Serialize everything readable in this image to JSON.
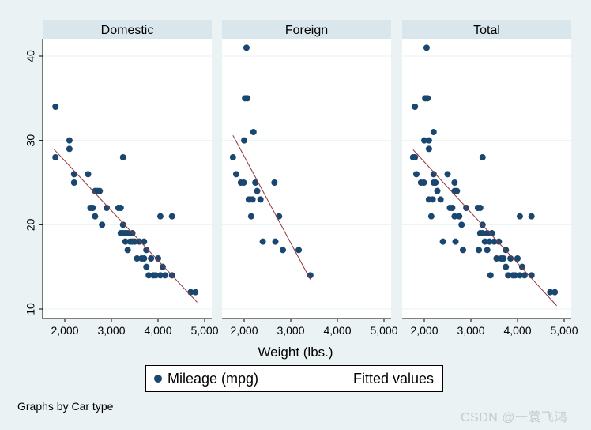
{
  "chart_data": {
    "type": "scatter",
    "subtype": "faceted scatter with linear fit",
    "xlabel": "Weight (lbs.)",
    "ylabel": "",
    "xlim": [
      1700,
      5000
    ],
    "ylim": [
      10,
      42
    ],
    "xticks": [
      2000,
      3000,
      4000,
      5000
    ],
    "xtick_labels": [
      "2,000",
      "3,000",
      "4,000",
      "5,000"
    ],
    "yticks": [
      10,
      20,
      30,
      40
    ],
    "ytick_labels": [
      "10",
      "20",
      "30",
      "40"
    ],
    "series_colors": {
      "points": "#1a476f",
      "fit": "#90353b"
    },
    "panels": [
      {
        "title": "Domestic",
        "points": [
          [
            1800,
            34
          ],
          [
            1800,
            28
          ],
          [
            2100,
            30
          ],
          [
            2100,
            29
          ],
          [
            2200,
            26
          ],
          [
            2200,
            25
          ],
          [
            2500,
            26
          ],
          [
            2550,
            22
          ],
          [
            2600,
            22
          ],
          [
            2650,
            21
          ],
          [
            2650,
            24
          ],
          [
            2700,
            24
          ],
          [
            2750,
            24
          ],
          [
            2800,
            20
          ],
          [
            2900,
            22
          ],
          [
            3150,
            22
          ],
          [
            3200,
            22
          ],
          [
            3200,
            19
          ],
          [
            3250,
            28
          ],
          [
            3250,
            20
          ],
          [
            3250,
            19
          ],
          [
            3300,
            19
          ],
          [
            3300,
            18
          ],
          [
            3350,
            17
          ],
          [
            3350,
            19
          ],
          [
            3400,
            18
          ],
          [
            3450,
            19
          ],
          [
            3450,
            18
          ],
          [
            3500,
            18
          ],
          [
            3550,
            16
          ],
          [
            3600,
            18
          ],
          [
            3650,
            16
          ],
          [
            3700,
            18
          ],
          [
            3700,
            16
          ],
          [
            3750,
            17
          ],
          [
            3750,
            15
          ],
          [
            3800,
            14
          ],
          [
            3850,
            16
          ],
          [
            3900,
            14
          ],
          [
            3950,
            14
          ],
          [
            4000,
            16
          ],
          [
            4050,
            21
          ],
          [
            4050,
            14
          ],
          [
            4100,
            15
          ],
          [
            4150,
            14
          ],
          [
            4300,
            21
          ],
          [
            4300,
            14
          ],
          [
            4700,
            12
          ],
          [
            4800,
            12
          ]
        ],
        "fit": {
          "x": [
            1760,
            4840
          ],
          "y": [
            29.0,
            10.8
          ]
        }
      },
      {
        "title": "Foreign",
        "points": [
          [
            1760,
            28
          ],
          [
            1830,
            26
          ],
          [
            1930,
            25
          ],
          [
            1990,
            25
          ],
          [
            2000,
            30
          ],
          [
            2020,
            35
          ],
          [
            2050,
            41
          ],
          [
            2070,
            35
          ],
          [
            2100,
            23
          ],
          [
            2130,
            23
          ],
          [
            2150,
            21
          ],
          [
            2180,
            23
          ],
          [
            2200,
            31
          ],
          [
            2240,
            25
          ],
          [
            2280,
            24
          ],
          [
            2350,
            23
          ],
          [
            2400,
            18
          ],
          [
            2650,
            25
          ],
          [
            2670,
            18
          ],
          [
            2750,
            21
          ],
          [
            2830,
            17
          ],
          [
            3170,
            17
          ],
          [
            3420,
            14
          ]
        ],
        "fit": {
          "x": [
            1760,
            3420
          ],
          "y": [
            30.6,
            13.5
          ]
        }
      },
      {
        "title": "Total",
        "points": [
          [
            1760,
            28
          ],
          [
            1800,
            34
          ],
          [
            1800,
            28
          ],
          [
            1830,
            26
          ],
          [
            1930,
            25
          ],
          [
            1990,
            25
          ],
          [
            2000,
            30
          ],
          [
            2020,
            35
          ],
          [
            2050,
            41
          ],
          [
            2070,
            35
          ],
          [
            2100,
            30
          ],
          [
            2100,
            29
          ],
          [
            2100,
            23
          ],
          [
            2150,
            21
          ],
          [
            2180,
            23
          ],
          [
            2200,
            31
          ],
          [
            2200,
            26
          ],
          [
            2200,
            25
          ],
          [
            2240,
            25
          ],
          [
            2280,
            24
          ],
          [
            2350,
            23
          ],
          [
            2400,
            18
          ],
          [
            2500,
            26
          ],
          [
            2550,
            22
          ],
          [
            2600,
            22
          ],
          [
            2650,
            25
          ],
          [
            2650,
            21
          ],
          [
            2650,
            24
          ],
          [
            2670,
            18
          ],
          [
            2700,
            24
          ],
          [
            2750,
            21
          ],
          [
            2800,
            20
          ],
          [
            2830,
            17
          ],
          [
            2900,
            22
          ],
          [
            3150,
            22
          ],
          [
            3170,
            17
          ],
          [
            3200,
            22
          ],
          [
            3200,
            19
          ],
          [
            3250,
            28
          ],
          [
            3250,
            20
          ],
          [
            3250,
            19
          ],
          [
            3300,
            18
          ],
          [
            3350,
            17
          ],
          [
            3350,
            19
          ],
          [
            3420,
            14
          ],
          [
            3400,
            18
          ],
          [
            3450,
            19
          ],
          [
            3500,
            18
          ],
          [
            3550,
            16
          ],
          [
            3600,
            18
          ],
          [
            3650,
            16
          ],
          [
            3700,
            16
          ],
          [
            3750,
            17
          ],
          [
            3750,
            15
          ],
          [
            3800,
            14
          ],
          [
            3850,
            16
          ],
          [
            3900,
            14
          ],
          [
            3950,
            14
          ],
          [
            4000,
            16
          ],
          [
            4050,
            21
          ],
          [
            4050,
            14
          ],
          [
            4100,
            15
          ],
          [
            4150,
            14
          ],
          [
            4300,
            21
          ],
          [
            4300,
            14
          ],
          [
            4700,
            12
          ],
          [
            4800,
            12
          ]
        ],
        "fit": {
          "x": [
            1760,
            4840
          ],
          "y": [
            28.9,
            10.4
          ]
        }
      }
    ]
  },
  "legend": {
    "points_label": "Mileage (mpg)",
    "fit_label": "Fitted values"
  },
  "note": "Graphs by Car type",
  "watermark": "CSDN @一蓑飞鸿"
}
